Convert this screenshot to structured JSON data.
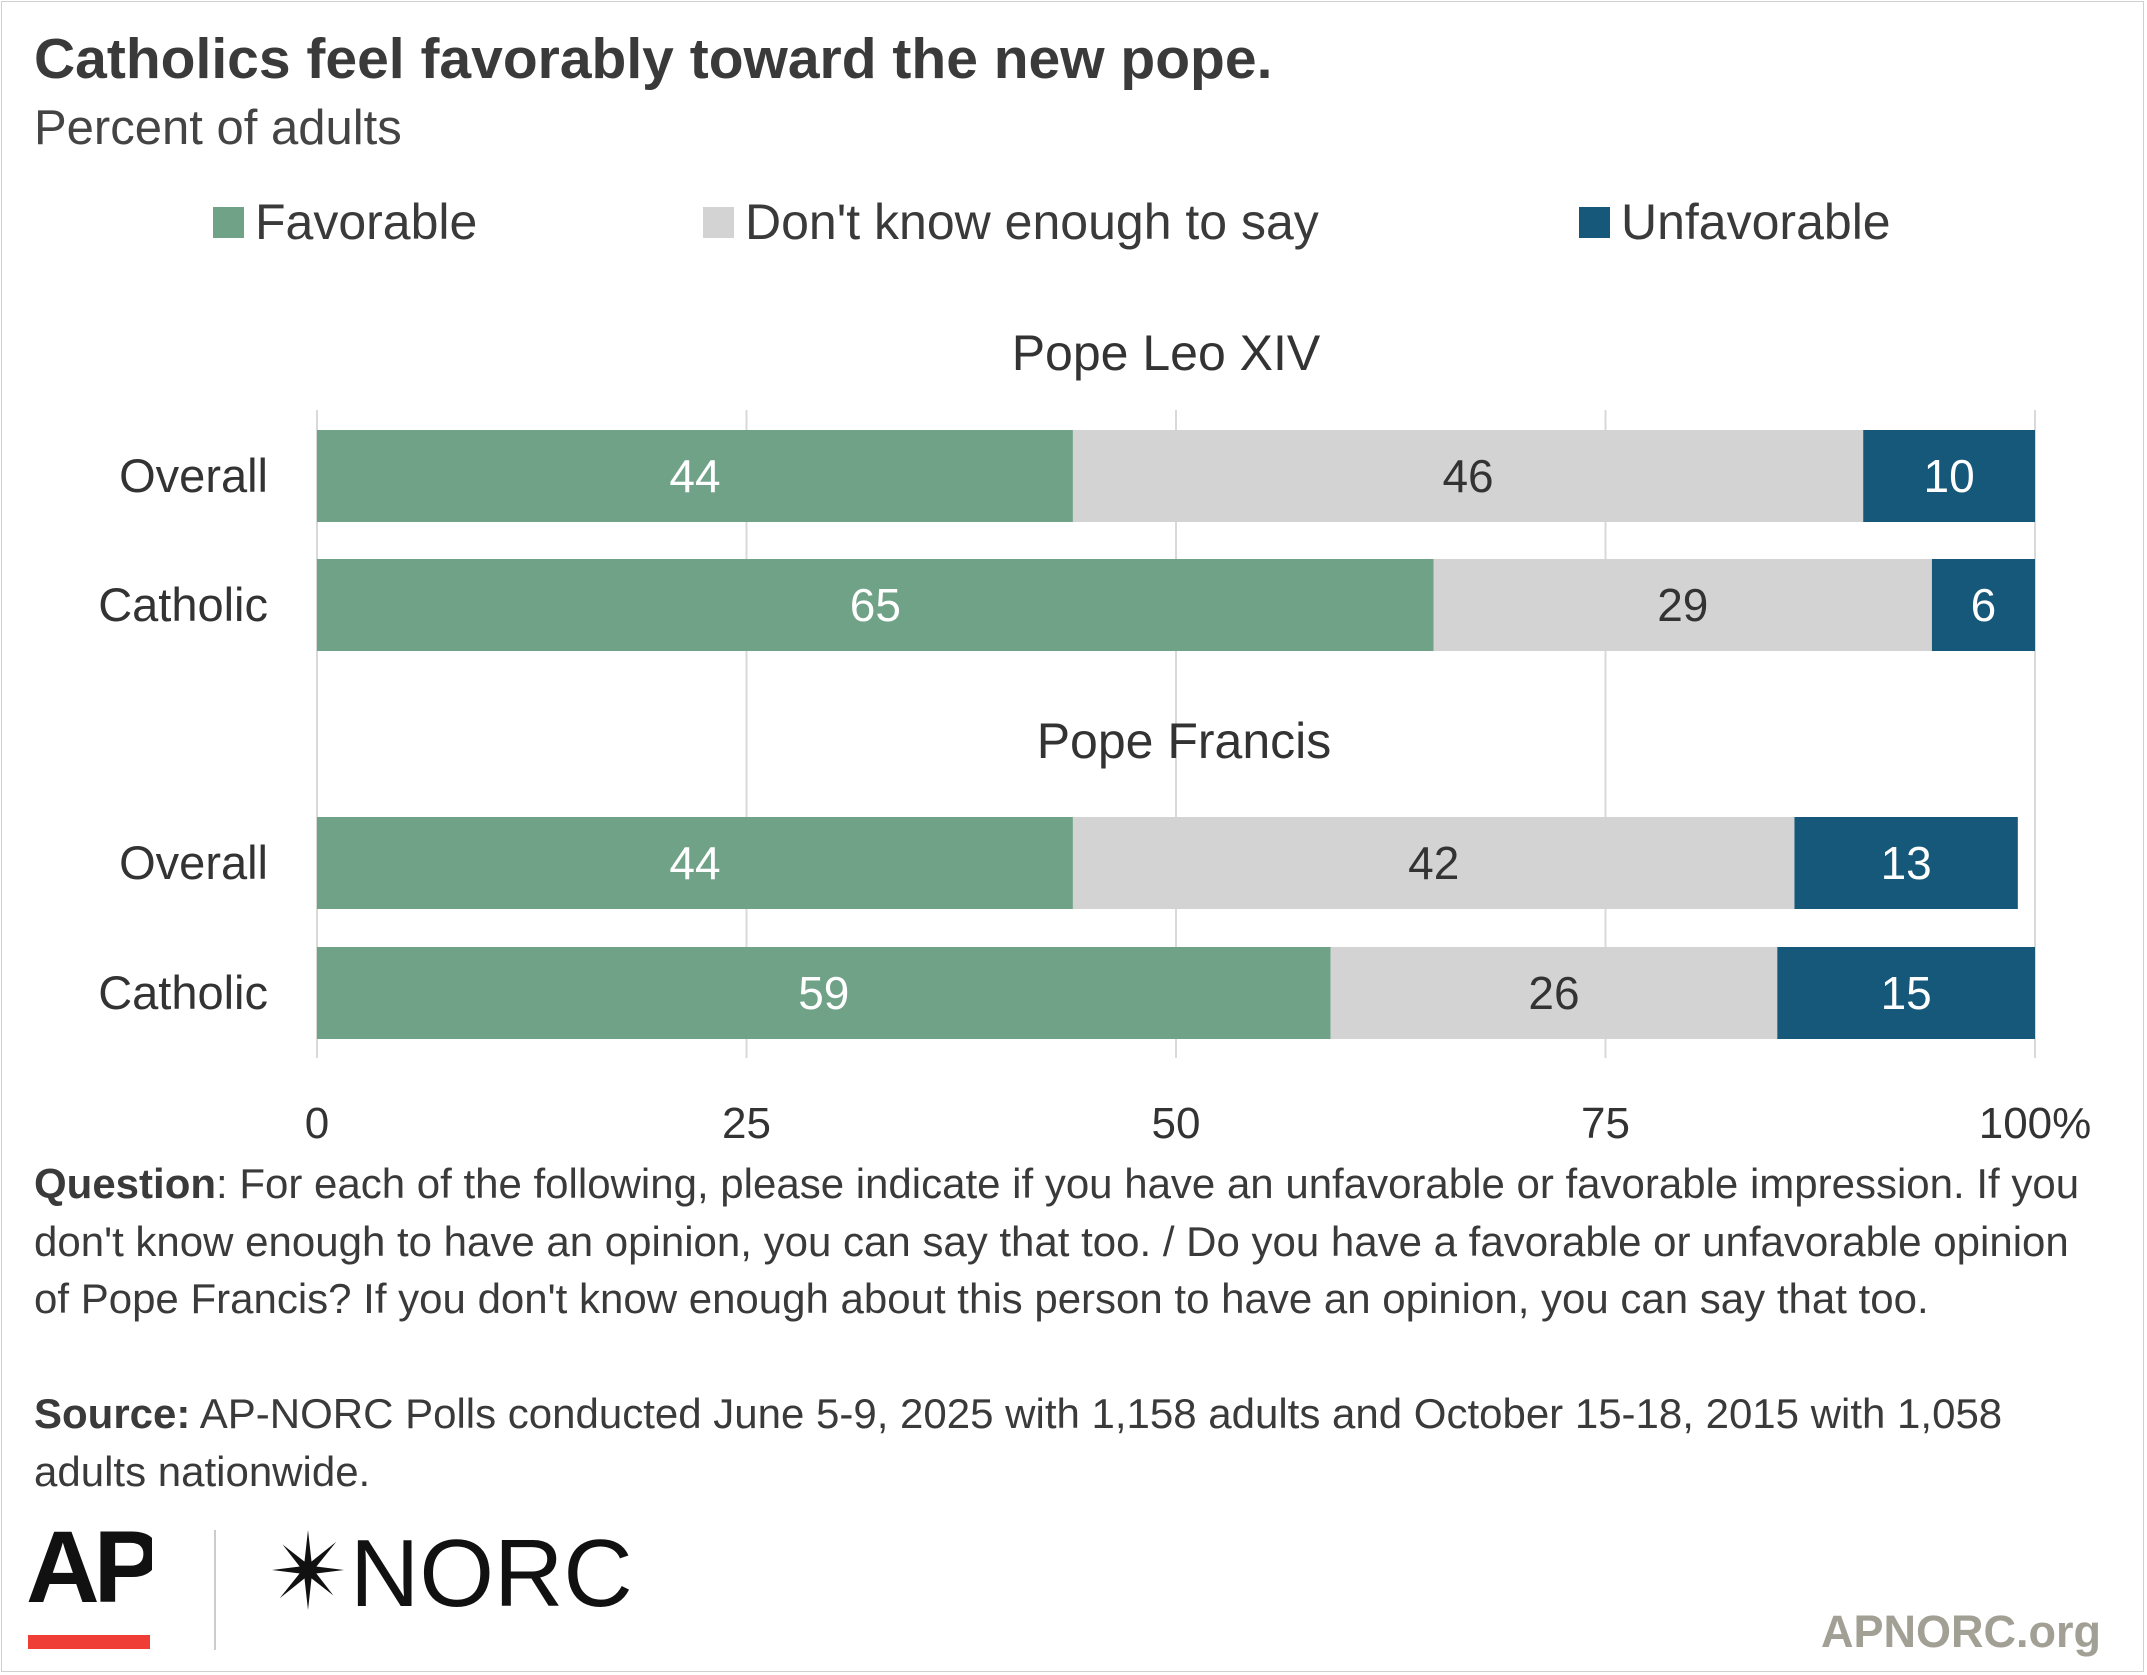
{
  "title": "Catholics feel favorably toward the new pope.",
  "subtitle": "Percent of adults",
  "colors": {
    "favorable": "#70a288",
    "dont_know": "#d3d3d3",
    "unfavorable": "#15587a",
    "gridline": "#d9d9d9",
    "ap_red": "#ef3e36",
    "url_gray": "#a29f94"
  },
  "legend": [
    {
      "label": "Favorable",
      "color": "#70a288"
    },
    {
      "label": "Don't know enough to say",
      "color": "#d3d3d3"
    },
    {
      "label": "Unfavorable",
      "color": "#15587a"
    }
  ],
  "chart_data": {
    "type": "bar",
    "orientation": "horizontal",
    "stacked": true,
    "xlim": [
      0,
      100
    ],
    "x_ticks": [
      "0",
      "25",
      "50",
      "75",
      "100%"
    ],
    "grid": true,
    "legend_position": "top",
    "series_names": [
      "Favorable",
      "Don't know enough to say",
      "Unfavorable"
    ],
    "groups": [
      {
        "title": "Pope Leo XIV",
        "rows": [
          {
            "label": "Overall",
            "values": [
              44,
              46,
              10
            ]
          },
          {
            "label": "Catholic",
            "values": [
              65,
              29,
              6
            ]
          }
        ]
      },
      {
        "title": "Pope Francis",
        "rows": [
          {
            "label": "Overall",
            "values": [
              44,
              42,
              13
            ]
          },
          {
            "label": "Catholic",
            "values": [
              59,
              26,
              15
            ]
          }
        ]
      }
    ]
  },
  "footnote": {
    "question_label": "Question",
    "question_text": ": For each of the following, please indicate if you have an unfavorable or favorable impression. If you don't know enough to have an opinion, you can say that too. / Do you have a favorable or unfavorable opinion of Pope Francis? If you don't know enough about this person to have an opinion, you can say that too.",
    "source_label": "Source:",
    "source_text": " AP-NORC Polls conducted June 5-9, 2025 with 1,158 adults and October 15-18, 2015 with 1,058 adults nationwide."
  },
  "logos": {
    "ap": "AP",
    "norc": "NORC",
    "norc_star_icon": "four-point-star-icon",
    "url": "APNORC.org"
  }
}
